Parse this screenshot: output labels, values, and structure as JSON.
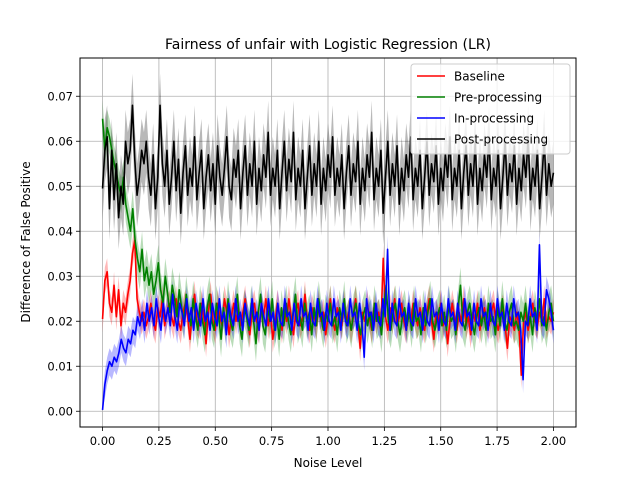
{
  "chart_data": {
    "type": "line",
    "title": "Fairness of unfair with Logistic Regression (LR)",
    "xlabel": "Noise Level",
    "ylabel": "Difference of False Positive",
    "xlim": [
      -0.1,
      2.1
    ],
    "ylim": [
      -0.0035,
      0.0785
    ],
    "x_ticks": [
      "0.00",
      "0.25",
      "0.50",
      "0.75",
      "1.00",
      "1.25",
      "1.50",
      "1.75",
      "2.00"
    ],
    "x_tick_values": [
      0,
      0.25,
      0.5,
      0.75,
      1.0,
      1.25,
      1.5,
      1.75,
      2.0
    ],
    "y_ticks": [
      "0.00",
      "0.01",
      "0.02",
      "0.03",
      "0.04",
      "0.05",
      "0.06",
      "0.07"
    ],
    "y_tick_values": [
      0,
      0.01,
      0.02,
      0.03,
      0.04,
      0.05,
      0.06,
      0.07
    ],
    "grid": true,
    "legend_position": "top-right",
    "x_start": 0.0,
    "x_end": 2.0,
    "series": [
      {
        "name": "Baseline",
        "color": "#ff0000",
        "values": [
          0.0205,
          0.029,
          0.031,
          0.024,
          0.022,
          0.028,
          0.021,
          0.027,
          0.019,
          0.024,
          0.022,
          0.026,
          0.029,
          0.035,
          0.038,
          0.025,
          0.022,
          0.02,
          0.022,
          0.019,
          0.021,
          0.024,
          0.02,
          0.018,
          0.023,
          0.021,
          0.025,
          0.019,
          0.022,
          0.024,
          0.021,
          0.019,
          0.025,
          0.02,
          0.018,
          0.022,
          0.024,
          0.021,
          0.016,
          0.022,
          0.026,
          0.02,
          0.019,
          0.024,
          0.021,
          0.015,
          0.022,
          0.026,
          0.02,
          0.018,
          0.024,
          0.021,
          0.019,
          0.025,
          0.022,
          0.017,
          0.021,
          0.024,
          0.02,
          0.023,
          0.019,
          0.022,
          0.025,
          0.02,
          0.017,
          0.022,
          0.024,
          0.02,
          0.018,
          0.023,
          0.021,
          0.025,
          0.019,
          0.022,
          0.016,
          0.02,
          0.024,
          0.021,
          0.018,
          0.023,
          0.02,
          0.025,
          0.021,
          0.017,
          0.022,
          0.024,
          0.019,
          0.021,
          0.026,
          0.02,
          0.018,
          0.023,
          0.021,
          0.019,
          0.024,
          0.02,
          0.022,
          0.017,
          0.021,
          0.025,
          0.02,
          0.018,
          0.023,
          0.021,
          0.019,
          0.024,
          0.02,
          0.022,
          0.018,
          0.021,
          0.025,
          0.02,
          0.014,
          0.022,
          0.02,
          0.024,
          0.021,
          0.018,
          0.023,
          0.02,
          0.022,
          0.019,
          0.034,
          0.021,
          0.018,
          0.023,
          0.02,
          0.025,
          0.019,
          0.021,
          0.024,
          0.02,
          0.018,
          0.022,
          0.02,
          0.024,
          0.021,
          0.019,
          0.023,
          0.02,
          0.018,
          0.022,
          0.025,
          0.02,
          0.016,
          0.022,
          0.02,
          0.024,
          0.019,
          0.021,
          0.015,
          0.02,
          0.024,
          0.021,
          0.018,
          0.022,
          0.02,
          0.025,
          0.019,
          0.021,
          0.017,
          0.022,
          0.02,
          0.024,
          0.018,
          0.021,
          0.023,
          0.02,
          0.019,
          0.022,
          0.024,
          0.02,
          0.018,
          0.021,
          0.023,
          0.019,
          0.014,
          0.021,
          0.02,
          0.018,
          0.022,
          0.019,
          0.008,
          0.02,
          0.022,
          0.018,
          0.021,
          0.024,
          0.02,
          0.019,
          0.022,
          0.02,
          0.025,
          0.019,
          0.021,
          0.02,
          0.022
        ],
        "band": 0.003
      },
      {
        "name": "Pre-processing",
        "color": "#008000",
        "values": [
          0.065,
          0.058,
          0.063,
          0.061,
          0.058,
          0.055,
          0.053,
          0.05,
          0.048,
          0.052,
          0.046,
          0.043,
          0.04,
          0.045,
          0.038,
          0.034,
          0.031,
          0.036,
          0.029,
          0.032,
          0.028,
          0.031,
          0.026,
          0.029,
          0.033,
          0.027,
          0.024,
          0.03,
          0.026,
          0.022,
          0.028,
          0.025,
          0.021,
          0.027,
          0.023,
          0.02,
          0.026,
          0.022,
          0.019,
          0.025,
          0.021,
          0.018,
          0.024,
          0.02,
          0.017,
          0.023,
          0.026,
          0.02,
          0.018,
          0.024,
          0.021,
          0.016,
          0.023,
          0.019,
          0.025,
          0.02,
          0.018,
          0.022,
          0.026,
          0.019,
          0.016,
          0.023,
          0.021,
          0.018,
          0.024,
          0.02,
          0.015,
          0.022,
          0.026,
          0.019,
          0.017,
          0.023,
          0.02,
          0.025,
          0.018,
          0.021,
          0.016,
          0.023,
          0.019,
          0.024,
          0.02,
          0.017,
          0.022,
          0.026,
          0.019,
          0.021,
          0.018,
          0.024,
          0.02,
          0.022,
          0.017,
          0.023,
          0.019,
          0.025,
          0.021,
          0.018,
          0.022,
          0.02,
          0.024,
          0.019,
          0.021,
          0.017,
          0.023,
          0.02,
          0.025,
          0.019,
          0.021,
          0.018,
          0.022,
          0.024,
          0.02,
          0.017,
          0.021,
          0.023,
          0.019,
          0.022,
          0.018,
          0.024,
          0.02,
          0.021,
          0.017,
          0.023,
          0.028,
          0.02,
          0.018,
          0.022,
          0.024,
          0.02,
          0.017,
          0.021,
          0.023,
          0.019,
          0.022,
          0.018,
          0.024,
          0.02,
          0.021,
          0.017,
          0.023,
          0.019,
          0.022,
          0.025,
          0.02,
          0.018,
          0.021,
          0.023,
          0.019,
          0.022,
          0.018,
          0.024,
          0.02,
          0.021,
          0.017,
          0.023,
          0.028,
          0.02,
          0.018,
          0.022,
          0.024,
          0.02,
          0.017,
          0.021,
          0.023,
          0.019,
          0.022,
          0.018,
          0.024,
          0.02,
          0.021,
          0.017,
          0.023,
          0.019,
          0.025,
          0.02,
          0.018,
          0.022,
          0.024,
          0.019,
          0.02,
          0.018,
          0.022,
          0.02,
          0.024,
          0.019,
          0.021,
          0.017,
          0.023,
          0.02,
          0.025,
          0.019,
          0.021,
          0.018,
          0.022,
          0.024,
          0.02
        ],
        "band": 0.004
      },
      {
        "name": "In-processing",
        "color": "#0000ff",
        "values": [
          0.0003,
          0.006,
          0.009,
          0.011,
          0.01,
          0.012,
          0.011,
          0.013,
          0.016,
          0.014,
          0.013,
          0.016,
          0.015,
          0.018,
          0.017,
          0.021,
          0.019,
          0.022,
          0.018,
          0.024,
          0.02,
          0.023,
          0.019,
          0.025,
          0.021,
          0.018,
          0.024,
          0.02,
          0.023,
          0.019,
          0.026,
          0.021,
          0.018,
          0.024,
          0.022,
          0.019,
          0.025,
          0.02,
          0.023,
          0.018,
          0.024,
          0.021,
          0.019,
          0.025,
          0.02,
          0.022,
          0.018,
          0.024,
          0.021,
          0.019,
          0.025,
          0.02,
          0.022,
          0.017,
          0.024,
          0.021,
          0.019,
          0.025,
          0.02,
          0.022,
          0.018,
          0.024,
          0.021,
          0.019,
          0.025,
          0.02,
          0.022,
          0.018,
          0.024,
          0.021,
          0.019,
          0.025,
          0.02,
          0.022,
          0.018,
          0.024,
          0.02,
          0.019,
          0.025,
          0.021,
          0.022,
          0.018,
          0.024,
          0.02,
          0.019,
          0.025,
          0.021,
          0.022,
          0.018,
          0.024,
          0.02,
          0.019,
          0.025,
          0.021,
          0.022,
          0.018,
          0.024,
          0.02,
          0.019,
          0.025,
          0.021,
          0.022,
          0.018,
          0.024,
          0.02,
          0.019,
          0.025,
          0.021,
          0.022,
          0.018,
          0.024,
          0.02,
          0.012,
          0.025,
          0.021,
          0.022,
          0.018,
          0.024,
          0.02,
          0.019,
          0.025,
          0.021,
          0.036,
          0.018,
          0.024,
          0.02,
          0.019,
          0.025,
          0.021,
          0.022,
          0.018,
          0.024,
          0.02,
          0.019,
          0.025,
          0.021,
          0.022,
          0.018,
          0.024,
          0.02,
          0.019,
          0.025,
          0.021,
          0.022,
          0.018,
          0.024,
          0.02,
          0.019,
          0.025,
          0.021,
          0.022,
          0.018,
          0.024,
          0.02,
          0.019,
          0.025,
          0.021,
          0.022,
          0.018,
          0.024,
          0.02,
          0.019,
          0.025,
          0.021,
          0.022,
          0.018,
          0.024,
          0.02,
          0.019,
          0.025,
          0.021,
          0.022,
          0.018,
          0.024,
          0.02,
          0.019,
          0.025,
          0.021,
          0.022,
          0.018,
          0.007,
          0.02,
          0.019,
          0.025,
          0.021,
          0.022,
          0.018,
          0.037,
          0.02,
          0.019,
          0.027,
          0.025,
          0.022,
          0.018
        ],
        "band": 0.003
      },
      {
        "name": "Post-processing",
        "color": "#000000",
        "values": [
          0.0495,
          0.058,
          0.061,
          0.045,
          0.058,
          0.047,
          0.055,
          0.043,
          0.05,
          0.046,
          0.06,
          0.055,
          0.058,
          0.068,
          0.056,
          0.048,
          0.052,
          0.058,
          0.055,
          0.06,
          0.052,
          0.048,
          0.057,
          0.045,
          0.052,
          0.068,
          0.055,
          0.05,
          0.058,
          0.046,
          0.052,
          0.06,
          0.049,
          0.056,
          0.044,
          0.053,
          0.059,
          0.048,
          0.054,
          0.05,
          0.061,
          0.047,
          0.053,
          0.058,
          0.045,
          0.052,
          0.057,
          0.049,
          0.055,
          0.046,
          0.059,
          0.052,
          0.048,
          0.054,
          0.061,
          0.05,
          0.047,
          0.056,
          0.052,
          0.058,
          0.045,
          0.053,
          0.059,
          0.048,
          0.055,
          0.05,
          0.06,
          0.046,
          0.054,
          0.049,
          0.057,
          0.052,
          0.062,
          0.048,
          0.054,
          0.05,
          0.058,
          0.045,
          0.053,
          0.06,
          0.049,
          0.056,
          0.051,
          0.062,
          0.047,
          0.054,
          0.05,
          0.058,
          0.045,
          0.052,
          0.059,
          0.048,
          0.055,
          0.05,
          0.06,
          0.046,
          0.054,
          0.049,
          0.057,
          0.052,
          0.061,
          0.048,
          0.054,
          0.05,
          0.057,
          0.045,
          0.053,
          0.059,
          0.048,
          0.055,
          0.051,
          0.06,
          0.046,
          0.054,
          0.049,
          0.057,
          0.052,
          0.062,
          0.047,
          0.054,
          0.05,
          0.058,
          0.044,
          0.052,
          0.06,
          0.048,
          0.055,
          0.05,
          0.059,
          0.046,
          0.054,
          0.049,
          0.057,
          0.052,
          0.061,
          0.047,
          0.054,
          0.05,
          0.058,
          0.045,
          0.052,
          0.06,
          0.048,
          0.055,
          0.051,
          0.059,
          0.046,
          0.054,
          0.049,
          0.057,
          0.052,
          0.061,
          0.047,
          0.054,
          0.05,
          0.058,
          0.045,
          0.053,
          0.059,
          0.048,
          0.055,
          0.05,
          0.06,
          0.046,
          0.054,
          0.049,
          0.057,
          0.052,
          0.061,
          0.047,
          0.054,
          0.05,
          0.058,
          0.045,
          0.052,
          0.06,
          0.048,
          0.055,
          0.051,
          0.059,
          0.046,
          0.054,
          0.049,
          0.057,
          0.052,
          0.061,
          0.047,
          0.054,
          0.05,
          0.058,
          0.045,
          0.052,
          0.06,
          0.048,
          0.055,
          0.05,
          0.053
        ],
        "band": 0.007
      }
    ]
  }
}
